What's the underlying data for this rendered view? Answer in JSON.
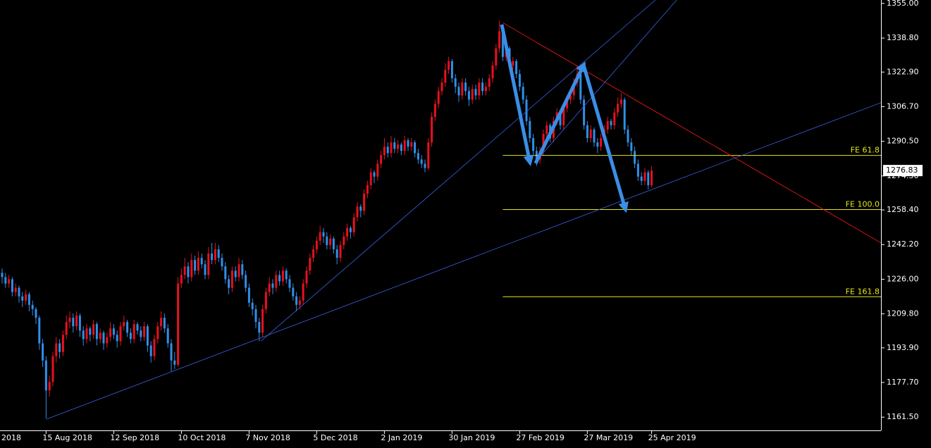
{
  "chart_data": {
    "type": "candlestick",
    "up_color": "#e8101e",
    "down_color": "#2f8fe8",
    "background": "#000000",
    "xlim": [
      -0.625,
      259.79
    ],
    "ylim": [
      1155.3,
      1356.6
    ],
    "yticks": [
      {
        "value": 1355,
        "label": "1355.00"
      },
      {
        "value": 1338.8,
        "label": "1338.80"
      },
      {
        "value": 1322.9,
        "label": "1322.90"
      },
      {
        "value": 1306.7,
        "label": "1306.70"
      },
      {
        "value": 1290.5,
        "label": "1290.50"
      },
      {
        "value": 1274.3,
        "label": "1274.30"
      },
      {
        "value": 1258.4,
        "label": "1258.40"
      },
      {
        "value": 1242.2,
        "label": "1242.20"
      },
      {
        "value": 1226,
        "label": "1226.00"
      },
      {
        "value": 1209.8,
        "label": "1209.80"
      },
      {
        "value": 1193.9,
        "label": "1193.90"
      },
      {
        "value": 1177.7,
        "label": "1177.70"
      },
      {
        "value": 1161.5,
        "label": "1161.50"
      }
    ],
    "partial_x_label": "2018",
    "categories": [
      null,
      null,
      null,
      null,
      null,
      null,
      null,
      null,
      null,
      null,
      null,
      null,
      null,
      "15 Aug 2018",
      null,
      null,
      null,
      null,
      null,
      null,
      null,
      null,
      null,
      null,
      null,
      null,
      null,
      null,
      null,
      null,
      null,
      null,
      null,
      "12 Sep 2018",
      null,
      null,
      null,
      null,
      null,
      null,
      null,
      null,
      null,
      null,
      null,
      null,
      null,
      null,
      null,
      null,
      null,
      null,
      null,
      "10 Oct 2018",
      null,
      null,
      null,
      null,
      null,
      null,
      null,
      null,
      null,
      null,
      null,
      null,
      null,
      null,
      null,
      null,
      null,
      null,
      null,
      "7 Nov 2018",
      null,
      null,
      null,
      null,
      null,
      null,
      null,
      null,
      null,
      null,
      null,
      null,
      null,
      null,
      null,
      null,
      null,
      null,
      null,
      "5 Dec 2018",
      null,
      null,
      null,
      null,
      null,
      null,
      null,
      null,
      null,
      null,
      null,
      null,
      null,
      null,
      null,
      null,
      null,
      null,
      null,
      "2 Jan 2019",
      null,
      null,
      null,
      null,
      null,
      null,
      null,
      null,
      null,
      null,
      null,
      null,
      null,
      null,
      null,
      null,
      null,
      null,
      null,
      "30 Jan 2019",
      null,
      null,
      null,
      null,
      null,
      null,
      null,
      null,
      null,
      null,
      null,
      null,
      null,
      null,
      null,
      null,
      null,
      null,
      null,
      "27 Feb 2019",
      null,
      null,
      null,
      null,
      null,
      null,
      null,
      null,
      null,
      null,
      null,
      null,
      null,
      null,
      null,
      null,
      null,
      null,
      null,
      "27 Mar 2019",
      null,
      null,
      null,
      null,
      null,
      null,
      null,
      null,
      null,
      null,
      null,
      null,
      null,
      null,
      null,
      null,
      null,
      null,
      "25 Apr 2019"
    ],
    "candles": [
      [
        1229,
        1231,
        1224,
        1227
      ],
      [
        1227,
        1229,
        1222,
        1224
      ],
      [
        1224,
        1228,
        1222,
        1226
      ],
      [
        1226,
        1227,
        1218,
        1220
      ],
      [
        1220,
        1224,
        1218,
        1222
      ],
      [
        1222,
        1223,
        1215,
        1218
      ],
      [
        1218,
        1220,
        1213,
        1216
      ],
      [
        1216,
        1221,
        1214,
        1219
      ],
      [
        1219,
        1220,
        1211,
        1214
      ],
      [
        1214,
        1216,
        1209,
        1212
      ],
      [
        1212,
        1213,
        1205,
        1208
      ],
      [
        1208,
        1209,
        1193,
        1196
      ],
      [
        1196,
        1198,
        1185,
        1188
      ],
      [
        1188,
        1190,
        1161,
        1174
      ],
      [
        1174,
        1181,
        1171,
        1178
      ],
      [
        1178,
        1192,
        1176,
        1190
      ],
      [
        1190,
        1199,
        1187,
        1196
      ],
      [
        1196,
        1198,
        1189,
        1192
      ],
      [
        1192,
        1202,
        1190,
        1200
      ],
      [
        1200,
        1209,
        1198,
        1206
      ],
      [
        1206,
        1211,
        1203,
        1208
      ],
      [
        1208,
        1210,
        1201,
        1204
      ],
      [
        1204,
        1211,
        1202,
        1209
      ],
      [
        1209,
        1210,
        1199,
        1202
      ],
      [
        1202,
        1204,
        1195,
        1198
      ],
      [
        1198,
        1205,
        1196,
        1203
      ],
      [
        1203,
        1204,
        1197,
        1200
      ],
      [
        1200,
        1207,
        1198,
        1205
      ],
      [
        1205,
        1206,
        1195,
        1198
      ],
      [
        1198,
        1203,
        1196,
        1201
      ],
      [
        1201,
        1202,
        1193,
        1196
      ],
      [
        1196,
        1201,
        1194,
        1199
      ],
      [
        1199,
        1206,
        1197,
        1203
      ],
      [
        1203,
        1205,
        1198,
        1200
      ],
      [
        1200,
        1202,
        1194,
        1197
      ],
      [
        1197,
        1206,
        1195,
        1204
      ],
      [
        1204,
        1209,
        1202,
        1206
      ],
      [
        1206,
        1207,
        1199,
        1201
      ],
      [
        1201,
        1203,
        1196,
        1198
      ],
      [
        1198,
        1207,
        1196,
        1205
      ],
      [
        1205,
        1206,
        1200,
        1202
      ],
      [
        1202,
        1204,
        1197,
        1199
      ],
      [
        1199,
        1206,
        1197,
        1204
      ],
      [
        1204,
        1205,
        1192,
        1195
      ],
      [
        1195,
        1197,
        1187,
        1190
      ],
      [
        1190,
        1200,
        1188,
        1198
      ],
      [
        1198,
        1206,
        1196,
        1204
      ],
      [
        1204,
        1211,
        1202,
        1208
      ],
      [
        1208,
        1210,
        1201,
        1203
      ],
      [
        1203,
        1205,
        1194,
        1196
      ],
      [
        1196,
        1198,
        1183,
        1188
      ],
      [
        1188,
        1192,
        1184,
        1186
      ],
      [
        1186,
        1227,
        1185,
        1224
      ],
      [
        1224,
        1231,
        1222,
        1228
      ],
      [
        1228,
        1236,
        1226,
        1232
      ],
      [
        1232,
        1234,
        1224,
        1227
      ],
      [
        1227,
        1238,
        1225,
        1235
      ],
      [
        1235,
        1237,
        1228,
        1230
      ],
      [
        1230,
        1239,
        1228,
        1236
      ],
      [
        1236,
        1238,
        1231,
        1233
      ],
      [
        1233,
        1235,
        1226,
        1228
      ],
      [
        1228,
        1241,
        1226,
        1238
      ],
      [
        1238,
        1243,
        1233,
        1235
      ],
      [
        1235,
        1243,
        1233,
        1240
      ],
      [
        1240,
        1242,
        1234,
        1236
      ],
      [
        1236,
        1238,
        1230,
        1232
      ],
      [
        1232,
        1234,
        1224,
        1226
      ],
      [
        1226,
        1228,
        1219,
        1222
      ],
      [
        1222,
        1232,
        1220,
        1230
      ],
      [
        1230,
        1232,
        1225,
        1227
      ],
      [
        1227,
        1236,
        1225,
        1233
      ],
      [
        1233,
        1235,
        1226,
        1228
      ],
      [
        1228,
        1230,
        1220,
        1222
      ],
      [
        1222,
        1224,
        1213,
        1215
      ],
      [
        1215,
        1217,
        1209,
        1212
      ],
      [
        1212,
        1214,
        1203,
        1206
      ],
      [
        1206,
        1208,
        1197,
        1201
      ],
      [
        1201,
        1214,
        1199,
        1212
      ],
      [
        1212,
        1222,
        1210,
        1220
      ],
      [
        1220,
        1227,
        1218,
        1224
      ],
      [
        1224,
        1226,
        1219,
        1222
      ],
      [
        1222,
        1230,
        1220,
        1228
      ],
      [
        1228,
        1230,
        1223,
        1225
      ],
      [
        1225,
        1232,
        1223,
        1230
      ],
      [
        1230,
        1231,
        1224,
        1226
      ],
      [
        1226,
        1228,
        1220,
        1222
      ],
      [
        1222,
        1224,
        1216,
        1218
      ],
      [
        1218,
        1220,
        1211,
        1214
      ],
      [
        1214,
        1218,
        1212,
        1216
      ],
      [
        1216,
        1226,
        1214,
        1224
      ],
      [
        1224,
        1232,
        1222,
        1230
      ],
      [
        1230,
        1238,
        1228,
        1236
      ],
      [
        1236,
        1242,
        1234,
        1240
      ],
      [
        1240,
        1246,
        1238,
        1244
      ],
      [
        1244,
        1251,
        1242,
        1248
      ],
      [
        1248,
        1250,
        1243,
        1246
      ],
      [
        1246,
        1248,
        1240,
        1242
      ],
      [
        1242,
        1247,
        1240,
        1245
      ],
      [
        1245,
        1246,
        1238,
        1240
      ],
      [
        1240,
        1242,
        1233,
        1236
      ],
      [
        1236,
        1244,
        1234,
        1242
      ],
      [
        1242,
        1248,
        1240,
        1246
      ],
      [
        1246,
        1252,
        1244,
        1250
      ],
      [
        1250,
        1251,
        1245,
        1248
      ],
      [
        1248,
        1257,
        1246,
        1255
      ],
      [
        1255,
        1262,
        1253,
        1260
      ],
      [
        1260,
        1261,
        1255,
        1258
      ],
      [
        1258,
        1268,
        1256,
        1266
      ],
      [
        1266,
        1272,
        1264,
        1270
      ],
      [
        1270,
        1278,
        1268,
        1276
      ],
      [
        1276,
        1277,
        1271,
        1274
      ],
      [
        1274,
        1282,
        1272,
        1280
      ],
      [
        1280,
        1286,
        1278,
        1284
      ],
      [
        1284,
        1292,
        1282,
        1288
      ],
      [
        1288,
        1290,
        1283,
        1285
      ],
      [
        1285,
        1293,
        1283,
        1290
      ],
      [
        1290,
        1292,
        1285,
        1287
      ],
      [
        1287,
        1291,
        1285,
        1289
      ],
      [
        1289,
        1290,
        1284,
        1286
      ],
      [
        1286,
        1293,
        1284,
        1291
      ],
      [
        1291,
        1292,
        1286,
        1288
      ],
      [
        1288,
        1292,
        1286,
        1290
      ],
      [
        1290,
        1291,
        1283,
        1285
      ],
      [
        1285,
        1287,
        1280,
        1282
      ],
      [
        1282,
        1284,
        1278,
        1280
      ],
      [
        1280,
        1282,
        1276,
        1278
      ],
      [
        1278,
        1292,
        1277,
        1290
      ],
      [
        1290,
        1304,
        1288,
        1302
      ],
      [
        1302,
        1310,
        1300,
        1308
      ],
      [
        1308,
        1316,
        1306,
        1314
      ],
      [
        1314,
        1320,
        1312,
        1318
      ],
      [
        1318,
        1327,
        1316,
        1324
      ],
      [
        1324,
        1330,
        1322,
        1328
      ],
      [
        1328,
        1329,
        1318,
        1320
      ],
      [
        1320,
        1322,
        1313,
        1316
      ],
      [
        1316,
        1318,
        1309,
        1312
      ],
      [
        1312,
        1320,
        1310,
        1318
      ],
      [
        1318,
        1320,
        1312,
        1314
      ],
      [
        1314,
        1316,
        1307,
        1310
      ],
      [
        1310,
        1317,
        1308,
        1315
      ],
      [
        1315,
        1317,
        1310,
        1312
      ],
      [
        1312,
        1320,
        1310,
        1318
      ],
      [
        1318,
        1320,
        1312,
        1314
      ],
      [
        1314,
        1318,
        1312,
        1316
      ],
      [
        1316,
        1322,
        1314,
        1320
      ],
      [
        1320,
        1328,
        1318,
        1326
      ],
      [
        1326,
        1336,
        1324,
        1334
      ],
      [
        1334,
        1347,
        1332,
        1342
      ],
      [
        1342,
        1344,
        1328,
        1330
      ],
      [
        1330,
        1336,
        1328,
        1334
      ],
      [
        1334,
        1335,
        1324,
        1326
      ],
      [
        1326,
        1330,
        1324,
        1328
      ],
      [
        1328,
        1329,
        1320,
        1322
      ],
      [
        1322,
        1324,
        1314,
        1316
      ],
      [
        1316,
        1318,
        1308,
        1310
      ],
      [
        1310,
        1312,
        1298,
        1300
      ],
      [
        1300,
        1302,
        1290,
        1292
      ],
      [
        1292,
        1294,
        1284,
        1286
      ],
      [
        1286,
        1288,
        1279,
        1282
      ],
      [
        1282,
        1288,
        1280,
        1286
      ],
      [
        1286,
        1296,
        1284,
        1294
      ],
      [
        1294,
        1300,
        1292,
        1298
      ],
      [
        1298,
        1299,
        1290,
        1292
      ],
      [
        1292,
        1302,
        1290,
        1300
      ],
      [
        1300,
        1306,
        1298,
        1304
      ],
      [
        1304,
        1305,
        1296,
        1298
      ],
      [
        1298,
        1308,
        1296,
        1306
      ],
      [
        1306,
        1312,
        1304,
        1310
      ],
      [
        1310,
        1314,
        1308,
        1312
      ],
      [
        1312,
        1320,
        1310,
        1318
      ],
      [
        1318,
        1326,
        1316,
        1322
      ],
      [
        1322,
        1323,
        1308,
        1310
      ],
      [
        1310,
        1312,
        1296,
        1298
      ],
      [
        1298,
        1300,
        1290,
        1292
      ],
      [
        1292,
        1298,
        1290,
        1296
      ],
      [
        1296,
        1297,
        1288,
        1290
      ],
      [
        1290,
        1292,
        1285,
        1288
      ],
      [
        1288,
        1294,
        1286,
        1292
      ],
      [
        1292,
        1298,
        1290,
        1296
      ],
      [
        1296,
        1302,
        1294,
        1300
      ],
      [
        1300,
        1301,
        1296,
        1298
      ],
      [
        1298,
        1306,
        1296,
        1304
      ],
      [
        1304,
        1311,
        1302,
        1308
      ],
      [
        1308,
        1313,
        1306,
        1310
      ],
      [
        1310,
        1311,
        1294,
        1296
      ],
      [
        1296,
        1298,
        1288,
        1290
      ],
      [
        1290,
        1292,
        1284,
        1286
      ],
      [
        1286,
        1288,
        1278,
        1280
      ],
      [
        1280,
        1282,
        1272,
        1274
      ],
      [
        1274,
        1276,
        1270,
        1272
      ],
      [
        1272,
        1278,
        1270,
        1276
      ],
      [
        1276,
        1277,
        1268,
        1270
      ],
      [
        1270,
        1279,
        1269,
        1276.83
      ]
    ],
    "current_price": 1276.83,
    "trendlines": [
      {
        "color": "#ff1a1a",
        "points": [
          [
            148,
            1346
          ],
          [
            260,
            1242.8
          ]
        ]
      },
      {
        "color": "#3a5fe0",
        "points": [
          [
            13,
            1160.5
          ],
          [
            259.8,
            1308.6
          ]
        ]
      },
      {
        "color": "#3a5fe0",
        "points": [
          [
            76.5,
            1197.05
          ],
          [
            193.1,
            1356.6
          ]
        ]
      },
      {
        "color": "#3a5fe0",
        "points": [
          [
            157.7,
            1281
          ],
          [
            199.4,
            1356.6
          ]
        ]
      }
    ],
    "arrows": {
      "color": "#3a8ee6",
      "items": [
        [
          [
            147.7,
            1345.1
          ],
          [
            156,
            1280.8
          ]
        ],
        [
          [
            157.7,
            1280.2
          ],
          [
            171.9,
            1326.1
          ]
        ],
        [
          [
            171.9,
            1326.1
          ],
          [
            184.2,
            1258.9
          ]
        ]
      ]
    },
    "fibo": {
      "color": "#e6e617",
      "start": 148,
      "levels": [
        {
          "label": "FE 61.8",
          "price": 1283.9
        },
        {
          "label": "FE 100.0",
          "price": 1258.6
        },
        {
          "label": "FE 161.8",
          "price": 1217.8
        }
      ]
    }
  }
}
